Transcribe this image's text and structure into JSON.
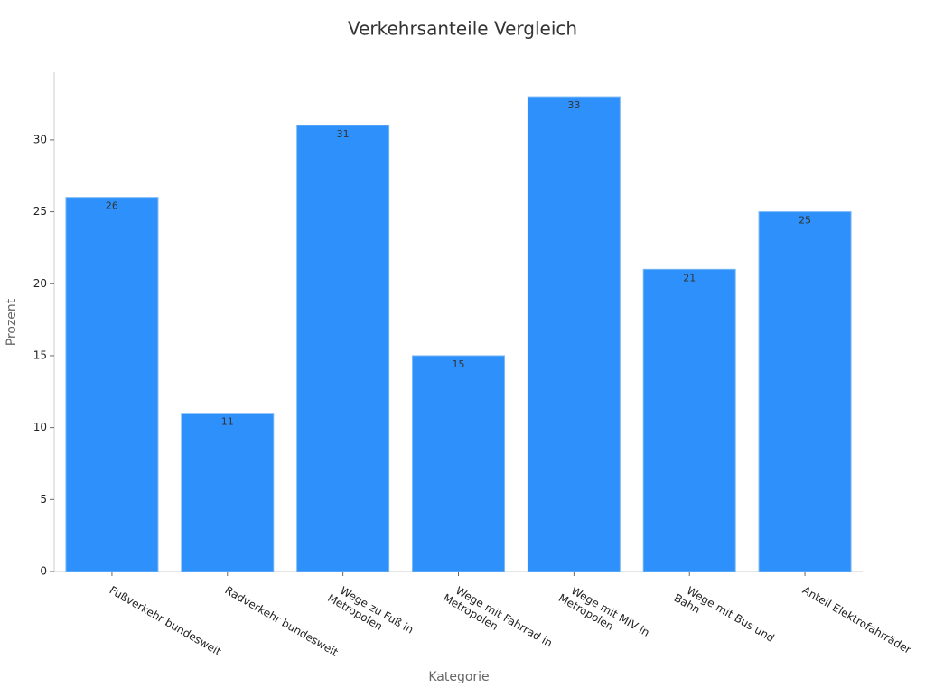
{
  "chart_data": {
    "type": "bar",
    "title": "Verkehrsanteile Vergleich",
    "x_label": "Kategorie",
    "y_label": "Prozent",
    "categories": [
      "Fußverkehr bundesweit",
      "Radverkehr bundesweit",
      "Wege zu Fuß in\nMetropolen",
      "Wege mit Fahrrad in\nMetropolen",
      "Wege mit MIV in\nMetropolen",
      "Wege mit Bus und\nBahn",
      "Anteil Elektrofahrräder"
    ],
    "values": [
      26,
      11,
      31,
      15,
      33,
      21,
      25
    ],
    "color": "#2e90fa",
    "ylim": [
      0,
      34.7
    ],
    "yticks": [
      0,
      5,
      10,
      15,
      20,
      25,
      30
    ],
    "grid": false
  }
}
